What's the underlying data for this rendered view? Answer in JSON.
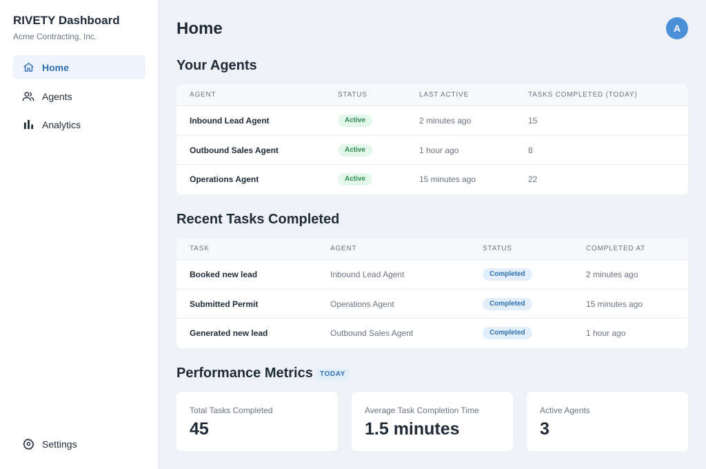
{
  "sidebar": {
    "title": "RIVETY Dashboard",
    "subtitle": "Acme Contracting, Inc.",
    "items": [
      {
        "label": "Home",
        "icon": "home-icon",
        "active": true
      },
      {
        "label": "Agents",
        "icon": "users-icon",
        "active": false
      },
      {
        "label": "Analytics",
        "icon": "bar-chart-icon",
        "active": false
      }
    ],
    "settings": {
      "label": "Settings",
      "icon": "gear-icon"
    }
  },
  "header": {
    "title": "Home",
    "avatar_initial": "A"
  },
  "agents_section": {
    "title": "Your Agents",
    "columns": [
      "AGENT",
      "STATUS",
      "LAST ACTIVE",
      "TASKS COMPLETED (TODAY)"
    ],
    "rows": [
      {
        "agent": "Inbound Lead Agent",
        "status": "Active",
        "last_active": "2 minutes ago",
        "tasks": "15"
      },
      {
        "agent": "Outbound Sales Agent",
        "status": "Active",
        "last_active": "1 hour ago",
        "tasks": "8"
      },
      {
        "agent": "Operations Agent",
        "status": "Active",
        "last_active": "15 minutes ago",
        "tasks": "22"
      }
    ]
  },
  "tasks_section": {
    "title": "Recent Tasks Completed",
    "columns": [
      "TASK",
      "AGENT",
      "STATUS",
      "COMPLETED AT"
    ],
    "rows": [
      {
        "task": "Booked new lead",
        "agent": "Inbound Lead Agent",
        "status": "Completed",
        "completed_at": "2 minutes ago"
      },
      {
        "task": "Submitted Permit",
        "agent": "Operations Agent",
        "status": "Completed",
        "completed_at": "15 minutes ago"
      },
      {
        "task": "Generated new lead",
        "agent": "Outbound Sales Agent",
        "status": "Completed",
        "completed_at": "1 hour ago"
      }
    ]
  },
  "metrics_section": {
    "title": "Performance Metrics",
    "tag": "TODAY",
    "cards": [
      {
        "label": "Total Tasks Completed",
        "value": "45"
      },
      {
        "label": "Average Task Completion Time",
        "value": "1.5 minutes"
      },
      {
        "label": "Active Agents",
        "value": "3"
      }
    ]
  },
  "colors": {
    "accent": "#4a90d9",
    "active_nav_bg": "#eef4fb",
    "active_badge_bg": "#e3f7ea",
    "completed_badge_bg": "#e2effb"
  }
}
